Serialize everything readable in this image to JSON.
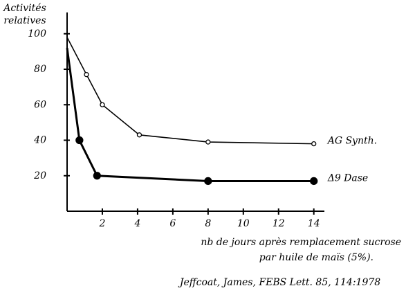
{
  "chart_data": {
    "type": "line",
    "ylabel": [
      "Activités",
      "relatives"
    ],
    "xlabel": [
      "nb de jours après remplacement sucrose",
      "par huile de maïs (5%)."
    ],
    "citation": "Jeffcoat, James, FEBS Lett. 85, 114:1978",
    "xlim": [
      0,
      14.6
    ],
    "ylim": [
      0,
      112
    ],
    "xticks": [
      2,
      4,
      6,
      8,
      10,
      12,
      14
    ],
    "yticks": [
      20,
      40,
      60,
      80,
      100
    ],
    "series": [
      {
        "name": "AG Synth.",
        "color": "#000000",
        "marker": "open",
        "x": [
          0,
          1.1,
          2,
          4.1,
          8,
          14
        ],
        "values": [
          98,
          77,
          60,
          43,
          39,
          38
        ]
      },
      {
        "name": "Δ9 Dase",
        "color": "#000000",
        "marker": "filled",
        "x": [
          0,
          0.7,
          1.7,
          8,
          14
        ],
        "values": [
          92,
          40,
          20,
          17,
          17
        ]
      }
    ]
  }
}
